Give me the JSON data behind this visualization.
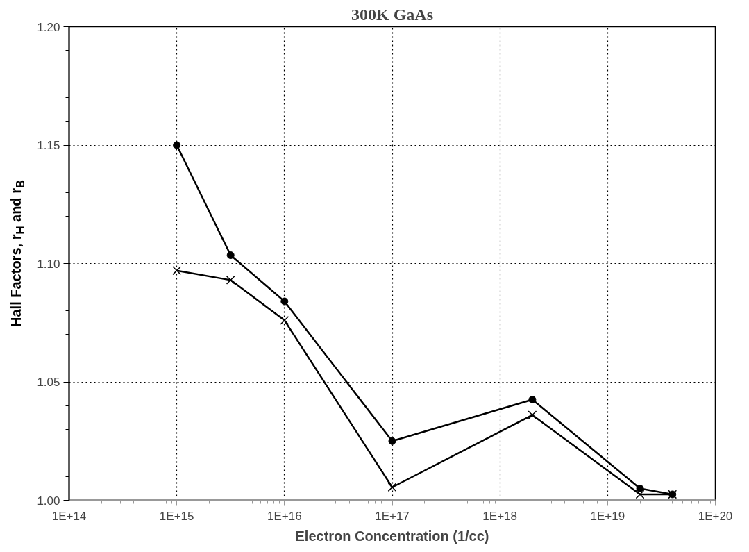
{
  "chart_data": {
    "type": "line",
    "title": "300K GaAs",
    "xlabel": "Electron Concentration (1/cc)",
    "ylabel": "Hall Factors, r$_{H}$ and r$_{B}$",
    "log": "x",
    "grid": true,
    "line_style": "solid",
    "xlim": [
      100000000000000.0,
      1e+20
    ],
    "ylim": [
      1.0,
      1.2
    ],
    "xticks": [
      {
        "value": 100000000000000.0,
        "label": "1E+14"
      },
      {
        "value": 1000000000000000.0,
        "label": "1E+15"
      },
      {
        "value": 1e+16,
        "label": "1E+16"
      },
      {
        "value": 1e+17,
        "label": "1E+17"
      },
      {
        "value": 1e+18,
        "label": "1E+18"
      },
      {
        "value": 1e+19,
        "label": "1E+19"
      },
      {
        "value": 1e+20,
        "label": "1E+20"
      }
    ],
    "yticks": [
      {
        "value": 1.0,
        "label": "1.00"
      },
      {
        "value": 1.05,
        "label": "1.05"
      },
      {
        "value": 1.1,
        "label": "1.10"
      },
      {
        "value": 1.15,
        "label": "1.15"
      },
      {
        "value": 1.2,
        "label": "1.20"
      }
    ],
    "x": [
      1000000000000000.0,
      3160000000000000.0,
      1e+16,
      1e+17,
      2e+18,
      2e+19,
      4e+19
    ],
    "series": [
      {
        "color": "#000000",
        "marker": "circle",
        "values": [
          1.15,
          1.1035,
          1.084,
          1.025,
          1.0425,
          1.005,
          1.0025
        ]
      },
      {
        "color": "#000000",
        "marker": "cross",
        "values": [
          1.097,
          1.093,
          1.076,
          1.0055,
          1.036,
          1.0025,
          1.0025
        ]
      }
    ]
  }
}
